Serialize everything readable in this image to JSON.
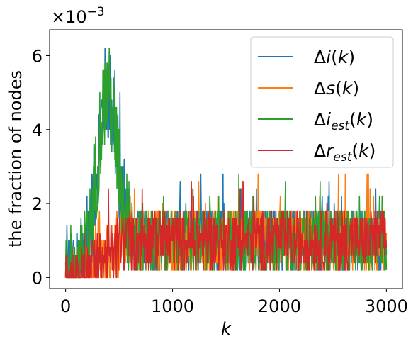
{
  "chart_data": {
    "type": "line",
    "title": "",
    "xlabel": "k",
    "ylabel": "the fraction of nodes",
    "y_scale_factor_label": "×10",
    "y_scale_factor_exponent": "−3",
    "xlim": [
      -150,
      3150
    ],
    "ylim": [
      -0.3,
      6.7
    ],
    "x_ticks": [
      0,
      1000,
      2000,
      3000
    ],
    "x_tick_labels": [
      "0",
      "1000",
      "2000",
      "3000"
    ],
    "y_ticks": [
      0,
      2,
      4,
      6
    ],
    "y_tick_labels": [
      "0",
      "2",
      "4",
      "6"
    ],
    "grid": false,
    "legend_position": "top-right",
    "colors": {
      "di": "#1f77b4",
      "ds": "#ff7f0e",
      "di_est": "#2ca02c",
      "dr_est": "#d62728"
    },
    "series": [
      {
        "key": "di",
        "name": "Δi(k)",
        "legend_main": "Δ",
        "legend_var": "i",
        "legend_sub": "",
        "legend_tail": "(k)"
      },
      {
        "key": "ds",
        "name": "Δs(k)",
        "legend_main": "Δ",
        "legend_var": "s",
        "legend_sub": "",
        "legend_tail": "(k)"
      },
      {
        "key": "di_est",
        "name": "Δi_est(k)",
        "legend_main": "Δ",
        "legend_var": "i",
        "legend_sub": "est",
        "legend_tail": "(k)"
      },
      {
        "key": "dr_est",
        "name": "Δr_est(k)",
        "legend_main": "Δ",
        "legend_var": "r",
        "legend_sub": "est",
        "legend_tail": "(k)"
      }
    ],
    "x_range": [
      0,
      3000
    ],
    "value_step": 0.2,
    "value_max": 6.4,
    "epidemic_peak_k": 380,
    "epidemic_peak_value": 6.4,
    "steady_state_mean": 1.0,
    "steady_state_max": 3.0
  }
}
